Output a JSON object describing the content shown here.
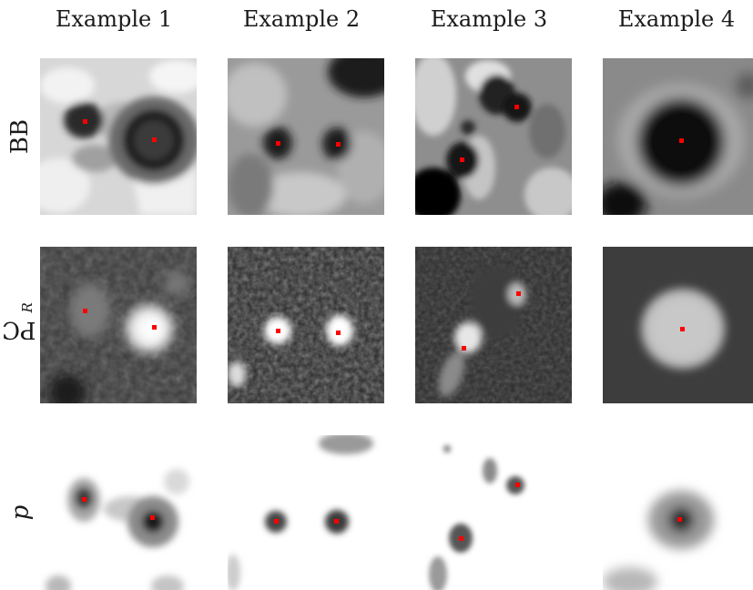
{
  "columns": [
    "Example 1",
    "Example 2",
    "Example 3",
    "Example 4"
  ],
  "rows": [
    {
      "label": "BB",
      "modality": "black-blood MRI crop"
    },
    {
      "label_main": "PC",
      "label_sub": "R",
      "modality": "phase-contrast MRI crop"
    },
    {
      "label": "p",
      "modality": "probability map"
    }
  ],
  "marker_color": "#ff0000",
  "markers_per_example": [
    2,
    2,
    2,
    1
  ]
}
